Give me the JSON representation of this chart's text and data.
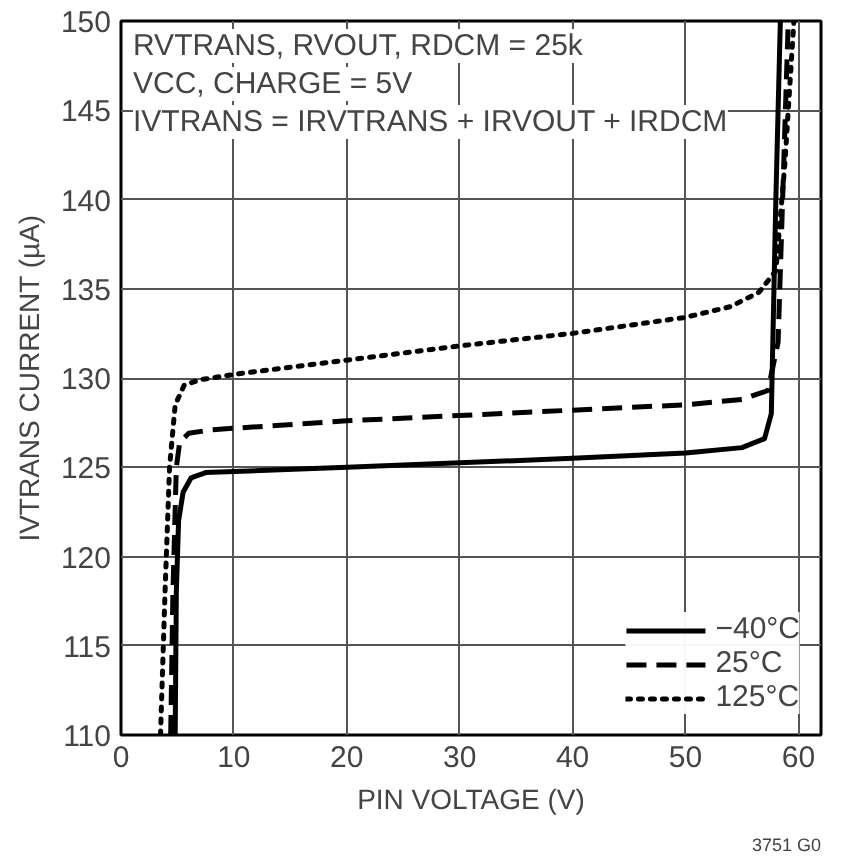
{
  "chart_data": {
    "type": "line",
    "xlabel": "PIN VOLTAGE (V)",
    "ylabel": "IVTRANS CURRENT (µA)",
    "xlim": [
      0,
      62
    ],
    "xticks": [
      0,
      10,
      20,
      30,
      40,
      50,
      60
    ],
    "ylim": [
      110,
      150
    ],
    "yticks": [
      110,
      115,
      120,
      125,
      130,
      135,
      140,
      145,
      150
    ],
    "grid": true,
    "legend": "bottom right",
    "series": [
      {
        "name": "−40°C",
        "color": "#000000",
        "line_style": "solid",
        "x": [
          4.8,
          4.9,
          5.1,
          5.5,
          6.2,
          7.5,
          20,
          40,
          50,
          55,
          57,
          57.6,
          58.0,
          58.4
        ],
        "values": [
          110,
          118,
          122,
          123.6,
          124.4,
          124.7,
          125,
          125.5,
          125.8,
          126.1,
          126.6,
          128,
          140,
          150
        ]
      },
      {
        "name": "25°C",
        "color": "#000000",
        "line_style": "dashed",
        "x": [
          4.4,
          4.6,
          4.9,
          5.2,
          6,
          8,
          20,
          40,
          50,
          55,
          57.3,
          58.2,
          58.6,
          59.1
        ],
        "values": [
          110,
          118,
          125,
          126.4,
          126.9,
          127.1,
          127.6,
          128.2,
          128.5,
          128.8,
          129.3,
          132,
          140,
          150
        ]
      },
      {
        "name": "125°C",
        "color": "#000000",
        "line_style": "dotted",
        "x": [
          3.5,
          3.9,
          4.3,
          4.8,
          5.6,
          7,
          10,
          20,
          30,
          40,
          50,
          54,
          56.5,
          58,
          58.8,
          59.6
        ],
        "values": [
          110,
          118,
          125,
          128.5,
          129.6,
          129.9,
          130.2,
          131,
          131.8,
          132.5,
          133.4,
          134,
          134.8,
          136,
          142,
          150
        ]
      }
    ],
    "annotations": [
      "RVTRANS, RVOUT, RDCM = 25k",
      "VCC, CHARGE = 5V",
      "IVTRANS = IRVTRANS + IRVOUT + IRDCM",
      "3751 G0"
    ]
  }
}
